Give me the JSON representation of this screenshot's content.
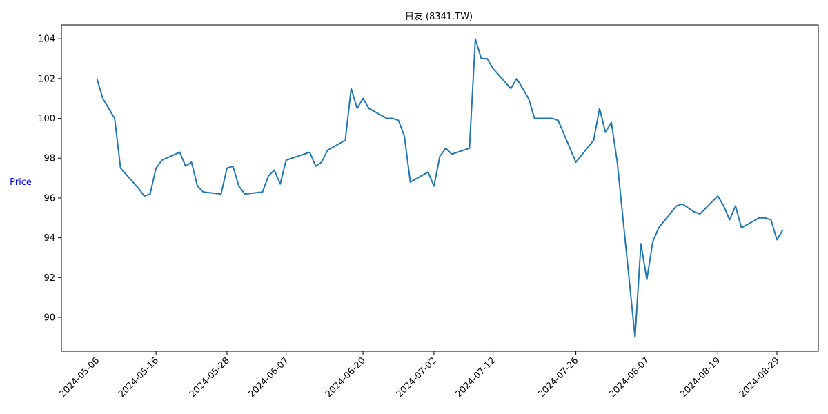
{
  "chart_data": {
    "type": "line",
    "title": "日友 (8341.TW)",
    "xlabel": "",
    "ylabel": "Price",
    "ylabel_color": "#0000ff",
    "line_color": "#1f77b4",
    "grid": false,
    "legend": "none",
    "xlim": [
      "2024-04-30",
      "2024-09-05"
    ],
    "ylim": [
      88.3,
      104.7
    ],
    "x_ticks": [
      "2024-05-06",
      "2024-05-16",
      "2024-05-28",
      "2024-06-07",
      "2024-06-20",
      "2024-07-02",
      "2024-07-12",
      "2024-07-26",
      "2024-08-07",
      "2024-08-19",
      "2024-08-29"
    ],
    "y_ticks": [
      90,
      92,
      94,
      96,
      98,
      100,
      102,
      104
    ],
    "series": [
      {
        "x": [
          "2024-05-06",
          "2024-05-07",
          "2024-05-09",
          "2024-05-10",
          "2024-05-13",
          "2024-05-14",
          "2024-05-15",
          "2024-05-16",
          "2024-05-17",
          "2024-05-20",
          "2024-05-21",
          "2024-05-22",
          "2024-05-23",
          "2024-05-24",
          "2024-05-27",
          "2024-05-28",
          "2024-05-29",
          "2024-05-30",
          "2024-05-31",
          "2024-06-03",
          "2024-06-04",
          "2024-06-05",
          "2024-06-06",
          "2024-06-07",
          "2024-06-11",
          "2024-06-12",
          "2024-06-13",
          "2024-06-14",
          "2024-06-17",
          "2024-06-18",
          "2024-06-19",
          "2024-06-20",
          "2024-06-21",
          "2024-06-24",
          "2024-06-25",
          "2024-06-26",
          "2024-06-27",
          "2024-06-28",
          "2024-07-01",
          "2024-07-02",
          "2024-07-03",
          "2024-07-04",
          "2024-07-05",
          "2024-07-08",
          "2024-07-09",
          "2024-07-10",
          "2024-07-11",
          "2024-07-12",
          "2024-07-15",
          "2024-07-16",
          "2024-07-17",
          "2024-07-18",
          "2024-07-19",
          "2024-07-22",
          "2024-07-23",
          "2024-07-26",
          "2024-07-29",
          "2024-07-30",
          "2024-07-31",
          "2024-08-01",
          "2024-08-02",
          "2024-08-05",
          "2024-08-06",
          "2024-08-07",
          "2024-08-08",
          "2024-08-09",
          "2024-08-12",
          "2024-08-13",
          "2024-08-14",
          "2024-08-15",
          "2024-08-16",
          "2024-08-19",
          "2024-08-20",
          "2024-08-21",
          "2024-08-22",
          "2024-08-23",
          "2024-08-26",
          "2024-08-27",
          "2024-08-28",
          "2024-08-29",
          "2024-08-30"
        ],
        "y": [
          102.0,
          101.0,
          100.0,
          97.5,
          96.5,
          96.1,
          96.2,
          97.5,
          97.9,
          98.3,
          97.6,
          97.8,
          96.6,
          96.3,
          96.2,
          97.5,
          97.6,
          96.6,
          96.2,
          96.3,
          97.1,
          97.4,
          96.7,
          97.9,
          98.3,
          97.6,
          97.8,
          98.4,
          98.9,
          101.5,
          100.5,
          101.0,
          100.5,
          100.0,
          100.0,
          99.9,
          99.1,
          96.8,
          97.3,
          96.6,
          98.1,
          98.5,
          98.2,
          98.5,
          104.0,
          103.0,
          103.0,
          102.5,
          101.5,
          102.0,
          101.5,
          101.0,
          100.0,
          100.0,
          99.9,
          97.8,
          98.9,
          100.5,
          99.3,
          99.8,
          97.8,
          89.0,
          93.7,
          91.9,
          93.8,
          94.5,
          95.6,
          95.7,
          95.5,
          95.3,
          95.2,
          96.1,
          95.6,
          94.9,
          95.6,
          94.5,
          95.0,
          95.0,
          94.9,
          93.9,
          94.4
        ]
      }
    ]
  }
}
